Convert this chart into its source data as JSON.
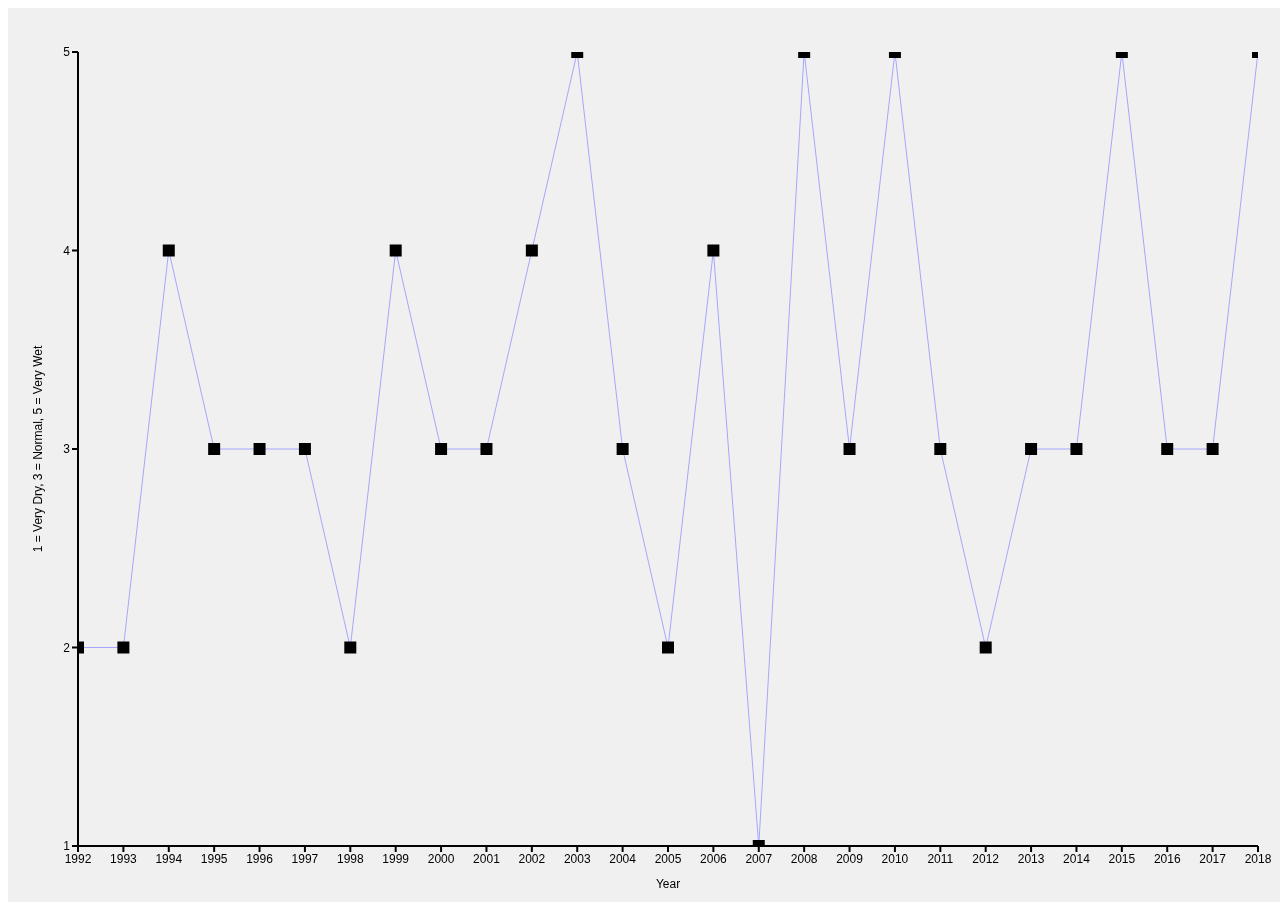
{
  "chart_data": {
    "type": "line",
    "xlabel": "Year",
    "ylabel": "1 = Very Dry, 3 = Normal, 5 = Very Wet",
    "x": [
      1992,
      1993,
      1994,
      1995,
      1996,
      1997,
      1998,
      1999,
      2000,
      2001,
      2002,
      2003,
      2004,
      2005,
      2006,
      2007,
      2008,
      2009,
      2010,
      2011,
      2012,
      2013,
      2014,
      2015,
      2016,
      2017,
      2018
    ],
    "series": [
      {
        "color": "#a6a6ff",
        "values": [
          2,
          2,
          4,
          3,
          3,
          3,
          2,
          4,
          3,
          3,
          4,
          5,
          3,
          2,
          4,
          1,
          5,
          3,
          5,
          3,
          2,
          3,
          3,
          5,
          3,
          3,
          5
        ]
      }
    ],
    "xlim": [
      1992,
      2018
    ],
    "xticks": [
      1992,
      1993,
      1994,
      1995,
      1996,
      1997,
      1998,
      1999,
      2000,
      2001,
      2002,
      2003,
      2004,
      2005,
      2006,
      2007,
      2008,
      2009,
      2010,
      2011,
      2012,
      2013,
      2014,
      2015,
      2016,
      2017,
      2018
    ],
    "ylim": [
      1,
      5
    ],
    "yticks": [
      1,
      2,
      3,
      4,
      5
    ],
    "grid": false,
    "legend": false,
    "marker": "square",
    "line_style": "solid"
  }
}
